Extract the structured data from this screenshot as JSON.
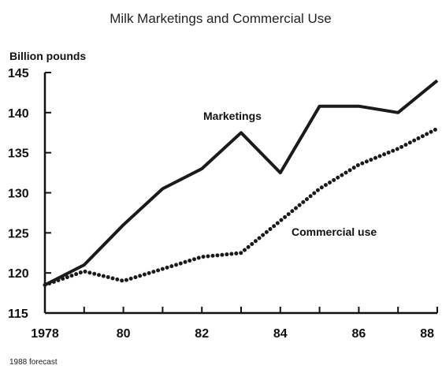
{
  "chart_data": {
    "type": "line",
    "title": "Milk Marketings and Commercial Use",
    "ylabel": "Billion pounds",
    "xlabel": "",
    "ylim": [
      115,
      145
    ],
    "xlim": [
      1978,
      1988
    ],
    "y_ticks": [
      115,
      120,
      125,
      130,
      135,
      140,
      145
    ],
    "y_tick_labels": [
      "115",
      "120",
      "125",
      "130",
      "135",
      "140",
      "145"
    ],
    "x_ticks": [
      1978,
      1980,
      1982,
      1984,
      1986,
      1988
    ],
    "x_tick_labels": [
      "1978",
      "80",
      "82",
      "84",
      "86",
      "88"
    ],
    "grid": false,
    "legend": "none",
    "x": [
      1978,
      1979,
      1980,
      1981,
      1982,
      1983,
      1984,
      1985,
      1986,
      1987,
      1988
    ],
    "series": [
      {
        "name": "Marketings",
        "values": [
          118.5,
          121,
          126,
          130.5,
          133,
          137.5,
          132.5,
          140.8,
          140.8,
          140,
          144
        ],
        "style": "solid",
        "color": "#1a1a1a"
      },
      {
        "name": "Commercial use",
        "values": [
          118.5,
          120.2,
          119,
          120.5,
          122,
          122.5,
          126.5,
          130.5,
          133.5,
          135.5,
          138
        ],
        "style": "dotted",
        "color": "#1a1a1a"
      }
    ],
    "footnote": "1988 forecast"
  }
}
